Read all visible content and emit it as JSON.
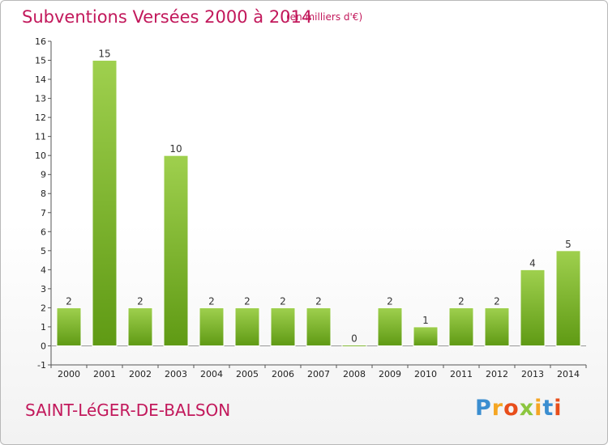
{
  "header": {
    "title": "Subventions Versées 2000 à 2014",
    "subtitle": "(en milliers d'€)"
  },
  "footer": {
    "place": "SAINT-LéGER-DE-BALSON",
    "logo": "Proxiti",
    "logo_colors": [
      "#3b8ed0",
      "#f5a623",
      "#e84e1b",
      "#8cc63f",
      "#f5a623",
      "#3b8ed0",
      "#e84e1b"
    ]
  },
  "colors": {
    "title": "#c2185b",
    "bar_top": "#9fd04e",
    "bar_bottom": "#5f9a14",
    "axis": "#555555",
    "grid": "#d9d9d9"
  },
  "chart_data": {
    "type": "bar",
    "title": "Subventions Versées 2000 à 2014",
    "subtitle": "(en milliers d'€)",
    "xlabel": "",
    "ylabel": "",
    "categories": [
      "2000",
      "2001",
      "2002",
      "2003",
      "2004",
      "2005",
      "2006",
      "2007",
      "2008",
      "2009",
      "2010",
      "2011",
      "2012",
      "2013",
      "2014"
    ],
    "values": [
      2,
      15,
      2,
      10,
      2,
      2,
      2,
      2,
      0,
      2,
      1,
      2,
      2,
      4,
      5
    ],
    "y_ticks": [
      -1,
      0,
      1,
      2,
      3,
      4,
      5,
      6,
      7,
      8,
      9,
      10,
      11,
      12,
      13,
      14,
      15,
      16
    ],
    "ylim": [
      -1,
      16
    ],
    "grid": false,
    "data_labels": true
  }
}
